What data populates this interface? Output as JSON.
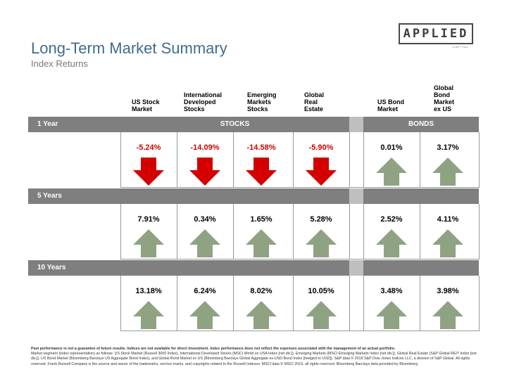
{
  "logo": {
    "name": "APPLIED",
    "sub": "CAPITAL"
  },
  "title": "Long-Term Market Summary",
  "subtitle": "Index Returns",
  "columns": [
    "US Stock\nMarket",
    "International\nDeveloped\nStocks",
    "Emerging\nMarkets\nStocks",
    "Global\nReal\nEstate",
    "US Bond\nMarket",
    "Global\nBond\nMarket\nex US"
  ],
  "group_labels": {
    "stocks": "STOCKS",
    "bonds": "BONDS"
  },
  "periods": [
    {
      "label": "1 Year",
      "values": [
        "-5.24%",
        "-14.09%",
        "-14.58%",
        "-5.90%",
        "0.01%",
        "3.17%"
      ],
      "direction": [
        "down",
        "down",
        "down",
        "down",
        "up",
        "up"
      ]
    },
    {
      "label": "5 Years",
      "values": [
        "7.91%",
        "0.34%",
        "1.65%",
        "5.28%",
        "2.52%",
        "4.11%"
      ],
      "direction": [
        "up",
        "up",
        "up",
        "up",
        "up",
        "up"
      ]
    },
    {
      "label": "10 Years",
      "values": [
        "13.18%",
        "6.24%",
        "8.02%",
        "10.05%",
        "3.48%",
        "3.98%"
      ],
      "direction": [
        "up",
        "up",
        "up",
        "up",
        "up",
        "up"
      ]
    }
  ],
  "colors": {
    "title": "#3f6d8c",
    "band": "#7f7f7f",
    "negative": "#cc0000",
    "down_arrow": "#d40000",
    "up_arrow": "#8fa383"
  },
  "footnote": {
    "bold": "Past performance is not a guarantee of future results. Indices are not available for direct investment. Index performance does not reflect the expenses associated with the management of an actual portfolio.",
    "text": "Market segment (index representation) as follows: US Stock Market (Russell 3000 Index), International Developed Stocks (MSCI World ex USA Index [net div.]), Emerging Markets (MSCI Emerging Markets Index [net div.]), Global Real Estate (S&P Global REIT Index [net div.]), US Bond Market (Bloomberg Barclays US Aggregate Bond Index), and Global Bond Market ex US (Bloomberg Barclays Global Aggregate ex-USD Bond Index [hedged to USD]). S&P data © 2019 S&P Dow Jones Indices LLC, a division of S&P Global. All rights reserved. Frank Russell Company is the source and owner of the trademarks, service marks, and copyrights related to the Russell Indexes. MSCI data © MSCI 2019, all rights reserved. Bloomberg Barclays data provided by Bloomberg."
  }
}
